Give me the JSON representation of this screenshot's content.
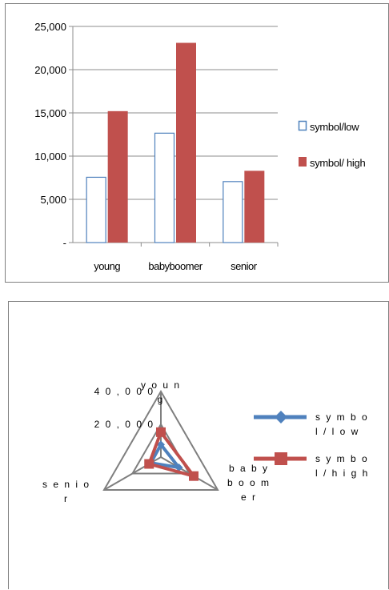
{
  "chart_data": [
    {
      "type": "bar",
      "categories": [
        "young",
        "babyboomer",
        "senior"
      ],
      "series": [
        {
          "name": "symbol/low",
          "values": [
            7600,
            12700,
            7100
          ],
          "color": "#4f81bd",
          "style": "outline"
        },
        {
          "name": "symbol/ high",
          "values": [
            15200,
            23100,
            8300
          ],
          "color": "#c0504d",
          "style": "filled"
        }
      ],
      "ylim": [
        0,
        25000
      ],
      "yticks": [
        0,
        5000,
        10000,
        15000,
        20000,
        25000
      ],
      "ytick_labels": [
        "-",
        "5,000",
        "10,000",
        "15,000",
        "20,000",
        "25,000"
      ],
      "grid": true,
      "legend": "right"
    },
    {
      "type": "radar",
      "axes": [
        {
          "label_lines": [
            "y o u n",
            "g"
          ]
        },
        {
          "label_lines": [
            "b a b y",
            "b o o m",
            "e r"
          ]
        },
        {
          "label_lines": [
            "s e n i o",
            "r"
          ]
        }
      ],
      "series": [
        {
          "name_lines": [
            "s y m  b o",
            "l / l o  w"
          ],
          "values": [
            7600,
            12700,
            7100
          ],
          "color": "#4f81bd",
          "marker": "diamond"
        },
        {
          "name_lines": [
            "s y m  b o",
            "l /  h i g h"
          ],
          "values": [
            15200,
            23100,
            8300
          ],
          "color": "#c0504d",
          "marker": "square"
        }
      ],
      "rlim": [
        0,
        40000
      ],
      "rticks": [
        0,
        20000,
        40000
      ],
      "rtick_labels": [
        "-",
        "2 0 , 0 0 0",
        "4 0 , 0 0 0"
      ],
      "legend": "right"
    }
  ]
}
